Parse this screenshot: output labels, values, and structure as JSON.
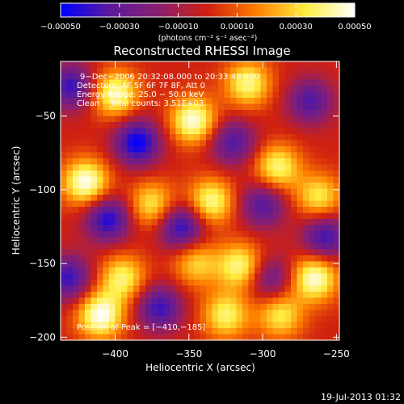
{
  "chart_data": {
    "type": "heatmap",
    "title": "Reconstructed RHESSI Image",
    "xlabel": "Heliocentric X (arcsec)",
    "ylabel": "Heliocentric Y (arcsec)",
    "xlim": [
      -437,
      -248
    ],
    "ylim": [
      -202,
      -13
    ],
    "x_ticks": [
      -400,
      -350,
      -300,
      -250
    ],
    "x_tick_labels": [
      "−400",
      "−350",
      "−300",
      "−250"
    ],
    "y_ticks": [
      -50,
      -100,
      -150,
      -200
    ],
    "y_tick_labels": [
      "−50",
      "−100",
      "−150",
      "−200"
    ],
    "colorbar": {
      "range": [
        -0.0005,
        0.0005
      ],
      "ticks": [
        -0.0005,
        -0.0003,
        -0.0001,
        0.0001,
        0.0003,
        0.0005
      ],
      "tick_labels": [
        "−0.00050",
        "−0.00030",
        "−0.00010",
        "0.00010",
        "0.00030",
        "0.00050"
      ],
      "unit_label": "(photons cm⁻² s⁻¹ asec⁻²)",
      "colors": [
        "#0000ff",
        "#5a1a9c",
        "#8a1f6f",
        "#d02010",
        "#ff8000",
        "#ffee40",
        "#ffffff"
      ]
    },
    "annotations": [
      "9−Dec−2006 20:32:08.000 to 20:33:48.000",
      "Detectors: 4F 5F 6F 7F 8F, Att 0",
      "Energy Range: 25.0 − 50.0 keV",
      "Clean    Total counts: 3.51E+03"
    ],
    "peak_label": "Position of Peak = [−410,−185]",
    "peak": [
      -410,
      -185
    ],
    "hot_spots": [
      {
        "x": -400,
        "y": -35,
        "value": 0.00045
      },
      {
        "x": -347,
        "y": -53,
        "value": 0.00048
      },
      {
        "x": -310,
        "y": -28,
        "value": 0.0004
      },
      {
        "x": -420,
        "y": -95,
        "value": 0.0005
      },
      {
        "x": -375,
        "y": -110,
        "value": 0.00035
      },
      {
        "x": -335,
        "y": -108,
        "value": 0.00042
      },
      {
        "x": -290,
        "y": -85,
        "value": 0.0004
      },
      {
        "x": -262,
        "y": -105,
        "value": 0.00035
      },
      {
        "x": -410,
        "y": -185,
        "value": 0.0005
      },
      {
        "x": -395,
        "y": -160,
        "value": 0.00038
      },
      {
        "x": -345,
        "y": -150,
        "value": 0.0003
      },
      {
        "x": -315,
        "y": -152,
        "value": 0.00042
      },
      {
        "x": -265,
        "y": -160,
        "value": 0.00048
      },
      {
        "x": -325,
        "y": -185,
        "value": 0.00038
      },
      {
        "x": -288,
        "y": -185,
        "value": 0.00035
      }
    ],
    "cold_spots": [
      {
        "x": -430,
        "y": -30,
        "value": -0.0004
      },
      {
        "x": -385,
        "y": -68,
        "value": -0.0005
      },
      {
        "x": -320,
        "y": -68,
        "value": -0.00035
      },
      {
        "x": -405,
        "y": -120,
        "value": -0.00045
      },
      {
        "x": -355,
        "y": -125,
        "value": -0.00045
      },
      {
        "x": -300,
        "y": -110,
        "value": -0.00035
      },
      {
        "x": -258,
        "y": -132,
        "value": -0.0004
      },
      {
        "x": -432,
        "y": -160,
        "value": -0.0004
      },
      {
        "x": -370,
        "y": -180,
        "value": -0.0004
      },
      {
        "x": -295,
        "y": -160,
        "value": -0.0003
      },
      {
        "x": -268,
        "y": -40,
        "value": -0.00035
      }
    ],
    "grid": false
  },
  "footer": {
    "timestamp": "19-Jul-2013 01:32"
  }
}
